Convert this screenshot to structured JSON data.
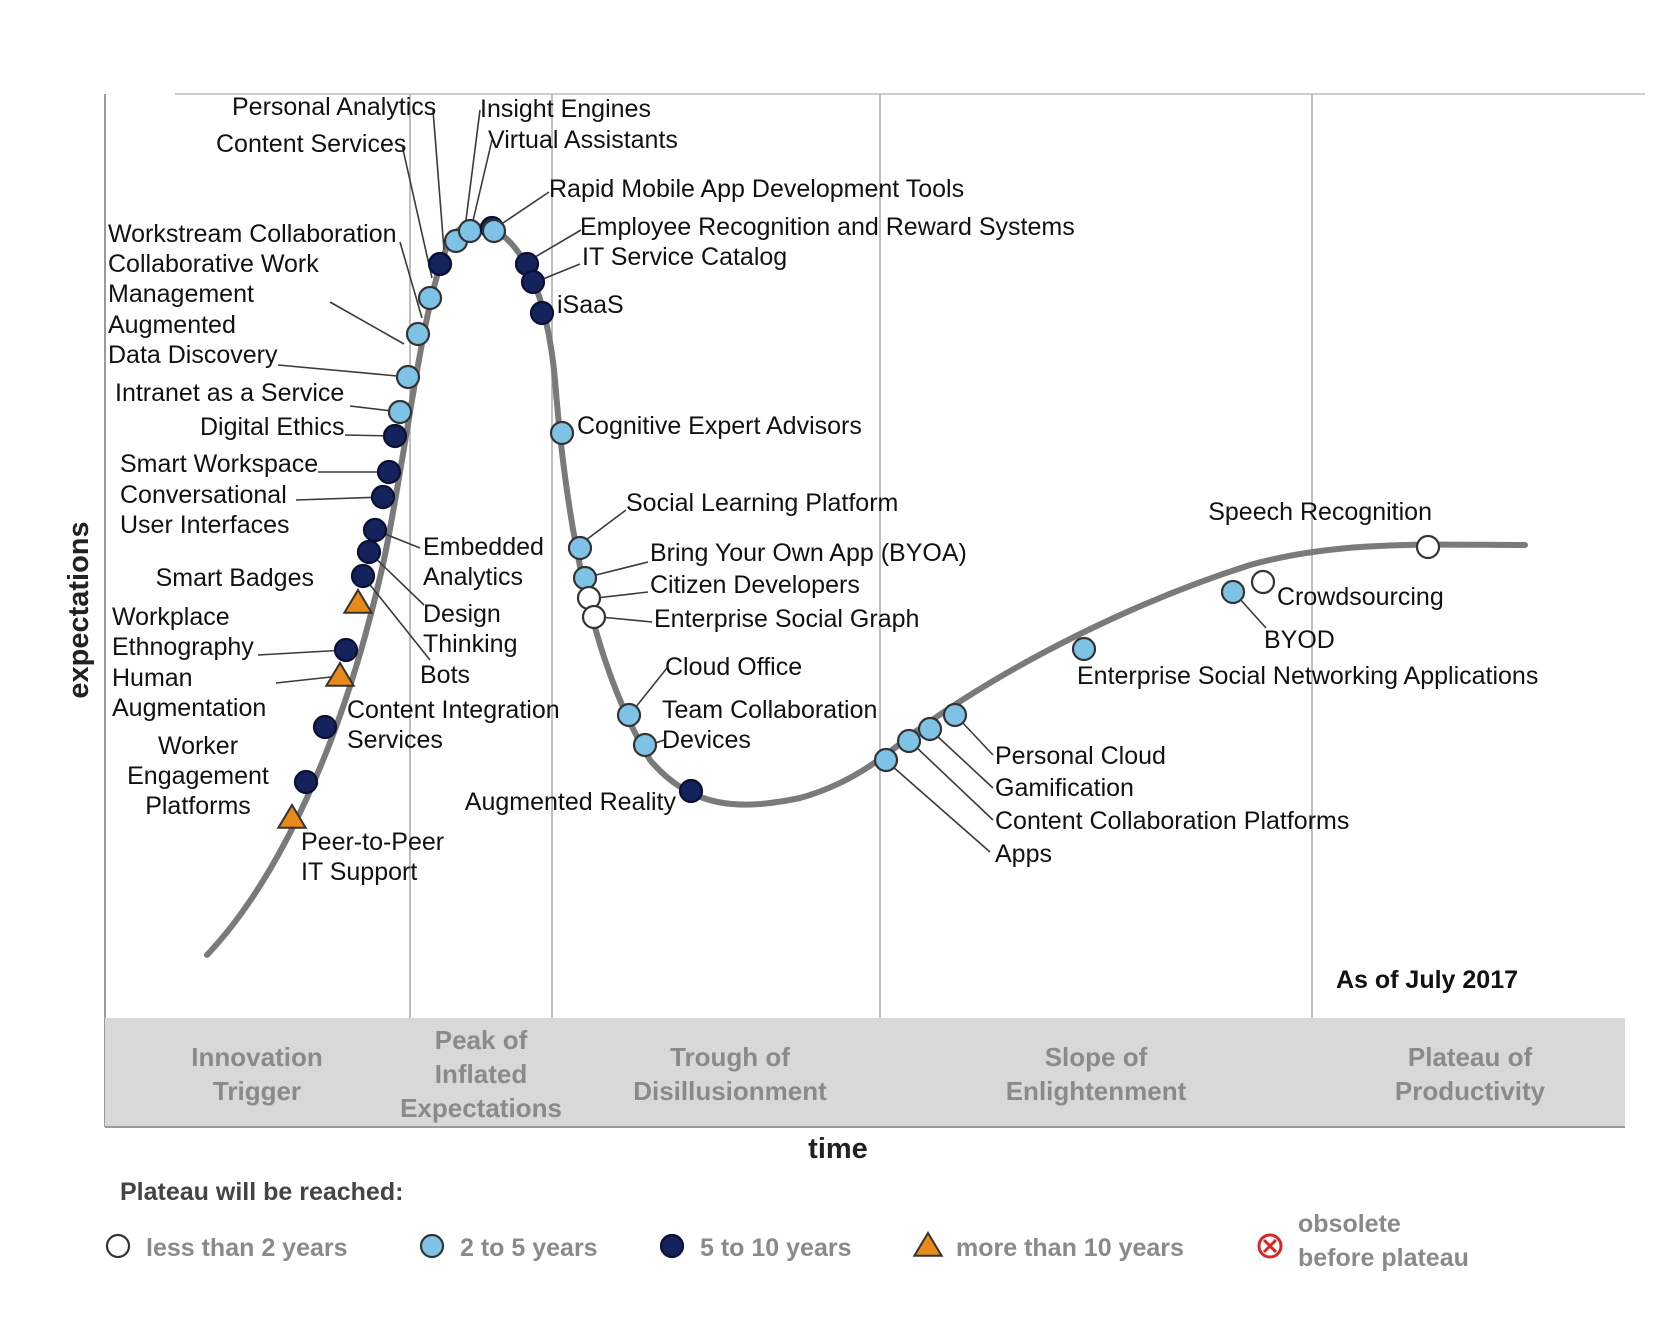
{
  "axes": {
    "y_label": "expectations",
    "x_label": "time"
  },
  "as_of": "As of July 2017",
  "colors": {
    "lt2": "#ffffff",
    "y2to5": "#7ec3e6",
    "y5to10": "#14235c",
    "gt10": "#e88a1a",
    "obsolete": "#d62828",
    "curve": "#7a7a7a",
    "phase_bg": "#d8d8d8"
  },
  "phases": [
    {
      "lines": [
        "Innovation",
        "Trigger"
      ]
    },
    {
      "lines": [
        "Peak of",
        "Inflated",
        "Expectations"
      ]
    },
    {
      "lines": [
        "Trough of",
        "Disillusionment"
      ]
    },
    {
      "lines": [
        "Slope of",
        "Enlightenment"
      ]
    },
    {
      "lines": [
        "Plateau of",
        "Productivity"
      ]
    }
  ],
  "legend": {
    "title": "Plateau will be reached:",
    "items": [
      {
        "key": "lt2",
        "label": "less than 2 years"
      },
      {
        "key": "y2to5",
        "label": "2 to 5 years"
      },
      {
        "key": "y5to10",
        "label": "5 to 10 years"
      },
      {
        "key": "gt10",
        "label": "more than 10 years"
      },
      {
        "key": "obsolete",
        "label": [
          "obsolete",
          "before plateau"
        ]
      }
    ]
  },
  "technologies": [
    {
      "name": [
        "Peer-to-Peer",
        "IT Support"
      ],
      "category": "gt10"
    },
    {
      "name": [
        "Worker",
        "Engagement",
        "Platforms"
      ],
      "category": "y5to10"
    },
    {
      "name": [
        "Content Integration",
        "Services"
      ],
      "category": "y5to10"
    },
    {
      "name": [
        "Human",
        "Augmentation"
      ],
      "category": "gt10"
    },
    {
      "name": [
        "Workplace",
        "Ethnography"
      ],
      "category": "y5to10"
    },
    {
      "name": [
        "Smart Badges"
      ],
      "category": "gt10"
    },
    {
      "name": [
        "Bots"
      ],
      "category": "y5to10"
    },
    {
      "name": [
        "Design",
        "Thinking"
      ],
      "category": "y5to10"
    },
    {
      "name": [
        "Embedded",
        "Analytics"
      ],
      "category": "y5to10"
    },
    {
      "name": [
        "Conversational",
        "User Interfaces"
      ],
      "category": "y5to10"
    },
    {
      "name": [
        "Smart Workspace"
      ],
      "category": "y5to10"
    },
    {
      "name": [
        "Digital Ethics"
      ],
      "category": "y5to10"
    },
    {
      "name": [
        "Intranet as a Service"
      ],
      "category": "y2to5"
    },
    {
      "name": [
        "Augmented",
        "Data Discovery"
      ],
      "category": "y2to5"
    },
    {
      "name": [
        "Collaborative Work",
        "Management"
      ],
      "category": "y2to5"
    },
    {
      "name": [
        "Workstream Collaboration"
      ],
      "category": "y2to5"
    },
    {
      "name": [
        "Content Services"
      ],
      "category": "y5to10"
    },
    {
      "name": [
        "Personal Analytics"
      ],
      "category": "y2to5"
    },
    {
      "name": [
        "Insight Engines"
      ],
      "category": "y2to5"
    },
    {
      "name": [
        "Virtual Assistants"
      ],
      "category": "y5to10"
    },
    {
      "name": [
        "Rapid Mobile App Development Tools"
      ],
      "category": "y2to5"
    },
    {
      "name": [
        "Employee Recognition and Reward Systems"
      ],
      "category": "y5to10"
    },
    {
      "name": [
        "IT Service Catalog"
      ],
      "category": "y5to10"
    },
    {
      "name": [
        "iSaaS"
      ],
      "category": "y5to10"
    },
    {
      "name": [
        "Cognitive Expert Advisors"
      ],
      "category": "y2to5"
    },
    {
      "name": [
        "Social Learning Platform"
      ],
      "category": "y2to5"
    },
    {
      "name": [
        "Bring Your Own App (BYOA)"
      ],
      "category": "y2to5"
    },
    {
      "name": [
        "Citizen Developers"
      ],
      "category": "lt2"
    },
    {
      "name": [
        "Enterprise Social Graph"
      ],
      "category": "lt2"
    },
    {
      "name": [
        "Cloud Office"
      ],
      "category": "y2to5"
    },
    {
      "name": [
        "Team Collaboration",
        "Devices"
      ],
      "category": "y2to5"
    },
    {
      "name": [
        "Augmented Reality"
      ],
      "category": "y5to10"
    },
    {
      "name": [
        "Apps"
      ],
      "category": "y2to5"
    },
    {
      "name": [
        "Content Collaboration Platforms"
      ],
      "category": "y2to5"
    },
    {
      "name": [
        "Gamification"
      ],
      "category": "y2to5"
    },
    {
      "name": [
        "Personal Cloud"
      ],
      "category": "y2to5"
    },
    {
      "name": [
        "Enterprise Social Networking Applications"
      ],
      "category": "y2to5"
    },
    {
      "name": [
        "BYOD"
      ],
      "category": "y2to5"
    },
    {
      "name": [
        "Crowdsourcing"
      ],
      "category": "lt2"
    },
    {
      "name": [
        "Speech Recognition"
      ],
      "category": "lt2"
    }
  ]
}
